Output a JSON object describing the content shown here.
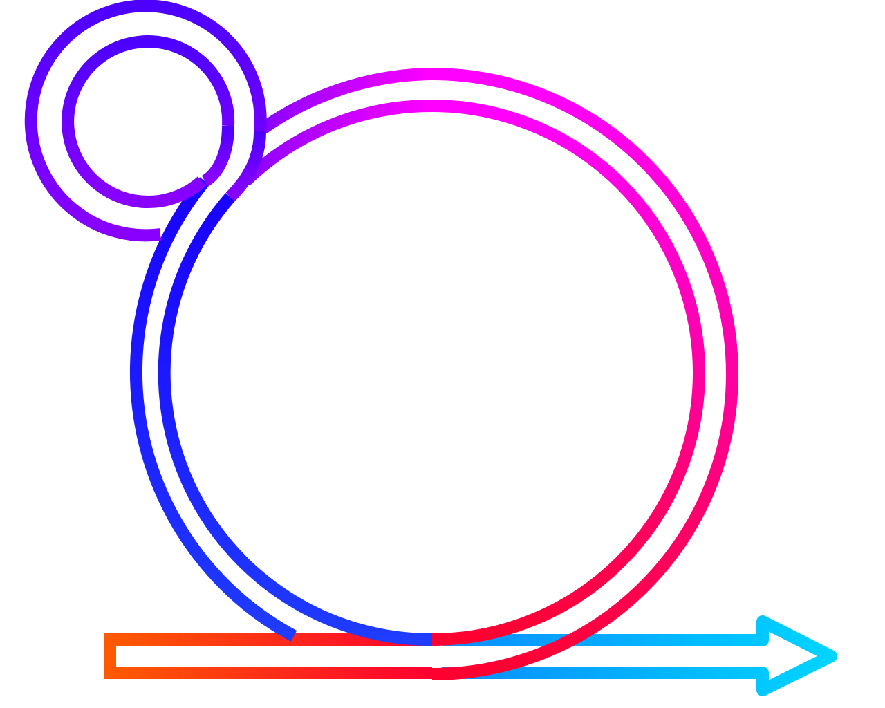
{
  "diagram": {
    "shapes": [
      {
        "kind": "small-ring",
        "icon": "ring-icon"
      },
      {
        "kind": "large-loop-ring",
        "icon": "loop-icon"
      },
      {
        "kind": "bottom-bar",
        "icon": "bar-icon"
      },
      {
        "kind": "arrow",
        "icon": "arrow-right-icon"
      }
    ],
    "colors": {
      "violet": "#8a00ff",
      "indigo": "#4d00ff",
      "blue": "#1a00ff",
      "royal_blue": "#1f3cff",
      "magenta": "#ff00ff",
      "pink": "#ff0099",
      "red": "#ff0030",
      "orange": "#ff5a00",
      "cyan": "#00d4ff",
      "sky": "#0a8cff",
      "background": "#ffffff"
    }
  }
}
